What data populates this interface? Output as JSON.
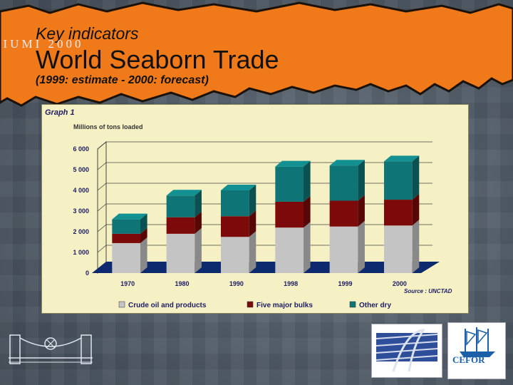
{
  "header": {
    "kicker": "Key indicators",
    "title": "World Seaborn Trade",
    "subtitle": "(1999: estimate - 2000: forecast)"
  },
  "chart_data": {
    "type": "bar",
    "stacked": true,
    "title": "Graph 1",
    "ylabel": "Millions of tons loaded",
    "source": "Source : UNCTAD",
    "categories": [
      "1970",
      "1980",
      "1990",
      "1998",
      "1999",
      "2000"
    ],
    "yticks": [
      "0",
      "1 000",
      "2 000",
      "3 000",
      "4 000",
      "5 000",
      "6 000"
    ],
    "ylim": [
      0,
      6000
    ],
    "grid": true,
    "legend_position": "bottom",
    "series": [
      {
        "name": "Crude oil and products",
        "color": "#c4c4c4",
        "values": [
          1450,
          1900,
          1750,
          2200,
          2250,
          2300
        ]
      },
      {
        "name": "Five major bulks",
        "color": "#7d0a0a",
        "values": [
          450,
          800,
          1000,
          1250,
          1250,
          1250
        ]
      },
      {
        "name": "Other dry",
        "color": "#0f7475",
        "values": [
          700,
          1050,
          1250,
          1700,
          1700,
          1850
        ]
      }
    ]
  },
  "footer": {
    "logo_left_text": "IUMI 2000",
    "logo_right_text": "CEFOR"
  }
}
